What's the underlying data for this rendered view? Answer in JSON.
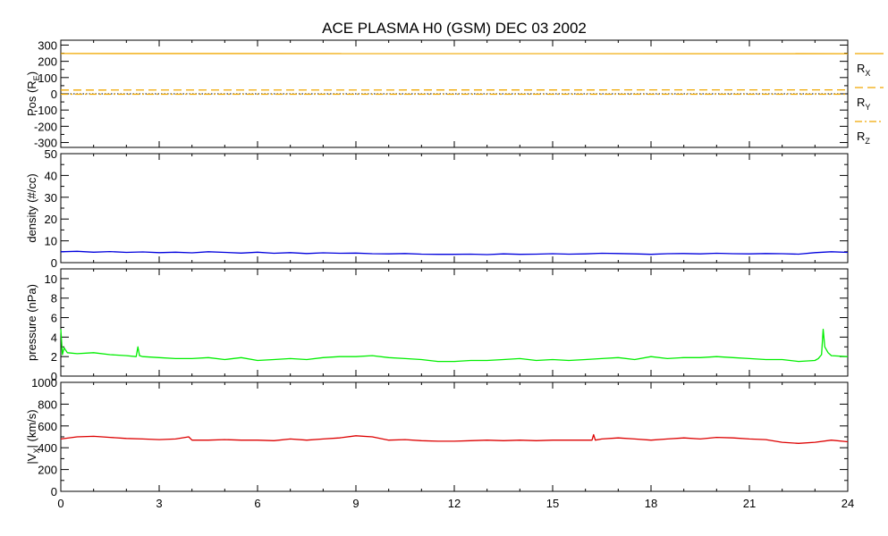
{
  "title": "ACE PLASMA H0 (GSM)   DEC 03 2002",
  "x_axis": {
    "range": [
      0,
      24
    ],
    "ticks": [
      0,
      3,
      6,
      9,
      12,
      15,
      18,
      21,
      24
    ],
    "tick_labels": [
      "0",
      "3",
      "6",
      "9",
      "12",
      "15",
      "18",
      "21",
      "24"
    ]
  },
  "chart_data": [
    {
      "type": "line",
      "panel": "position",
      "ylabel_main": "Pos (R",
      "ylabel_sub": "E",
      "ylabel_end": ")",
      "ylim": [
        -330,
        330
      ],
      "yticks": [
        -300,
        -200,
        -100,
        0,
        100,
        200,
        300
      ],
      "ytick_labels": [
        "-300",
        "-200",
        "-100",
        "0",
        "100",
        "200",
        "300"
      ],
      "legend_placement": "right",
      "series": [
        {
          "name": "X",
          "legend_main": "R",
          "legend_sub": "X",
          "style": "solid",
          "color": "#f0a800",
          "x": [
            0,
            24
          ],
          "y": [
            248,
            247
          ]
        },
        {
          "name": "Y",
          "legend_main": "R",
          "legend_sub": "Y",
          "style": "dashed",
          "color": "#f0a800",
          "x": [
            0,
            24
          ],
          "y": [
            23,
            24
          ]
        },
        {
          "name": "Z",
          "legend_main": "R",
          "legend_sub": "Z",
          "style": "dashdot",
          "color": "#f0a800",
          "x": [
            0,
            24
          ],
          "y": [
            -3,
            -3
          ]
        }
      ],
      "reference_line": {
        "y": 0,
        "style": "dotted",
        "color": "#000000"
      }
    },
    {
      "type": "line",
      "panel": "density",
      "ylabel": "density (#/cc)",
      "ylim": [
        0,
        50
      ],
      "yticks": [
        0,
        10,
        20,
        30,
        40,
        50
      ],
      "ytick_labels": [
        "0",
        "10",
        "20",
        "30",
        "40",
        "50"
      ],
      "series": [
        {
          "color": "#0000dd",
          "x": [
            0,
            0.5,
            1,
            1.5,
            2,
            2.5,
            3,
            3.5,
            4,
            4.5,
            5,
            5.5,
            6,
            6.5,
            7,
            7.5,
            8,
            8.5,
            9,
            9.5,
            10,
            10.5,
            11,
            11.5,
            12,
            12.5,
            13,
            13.5,
            14,
            14.5,
            15,
            15.5,
            16,
            16.5,
            17,
            17.5,
            18,
            18.5,
            19,
            19.5,
            20,
            20.5,
            21,
            21.5,
            22,
            22.5,
            23,
            23.5,
            24
          ],
          "y": [
            5.0,
            5.2,
            4.8,
            5.1,
            4.7,
            4.9,
            4.6,
            4.8,
            4.5,
            5.0,
            4.7,
            4.4,
            4.8,
            4.3,
            4.6,
            4.2,
            4.5,
            4.3,
            4.4,
            4.1,
            4.0,
            4.2,
            3.9,
            3.8,
            3.8,
            3.9,
            3.7,
            4.0,
            3.8,
            3.9,
            4.1,
            3.9,
            4.0,
            4.3,
            4.2,
            4.0,
            3.8,
            4.1,
            4.2,
            4.0,
            4.3,
            4.1,
            4.0,
            4.2,
            4.1,
            3.9,
            4.6,
            5.0,
            4.7
          ]
        }
      ]
    },
    {
      "type": "line",
      "panel": "pressure",
      "ylabel": "pressure (nPa)",
      "ylim": [
        0,
        11
      ],
      "yticks": [
        0,
        2,
        4,
        6,
        8,
        10
      ],
      "ytick_labels": [
        "0",
        "2",
        "4",
        "6",
        "8",
        "10"
      ],
      "series": [
        {
          "color": "#00ee00",
          "x": [
            0,
            0.05,
            0.1,
            0.2,
            0.5,
            1,
            1.5,
            2,
            2.3,
            2.35,
            2.4,
            2.5,
            3,
            3.5,
            4,
            4.5,
            5,
            5.5,
            6,
            6.5,
            7,
            7.5,
            8,
            8.5,
            9,
            9.5,
            10,
            10.5,
            11,
            11.5,
            12,
            12.5,
            13,
            13.5,
            14,
            14.5,
            15,
            15.5,
            16,
            16.5,
            17,
            17.5,
            18,
            18.5,
            19,
            19.5,
            20,
            20.5,
            21,
            21.5,
            22,
            22.5,
            23,
            23.1,
            23.2,
            23.25,
            23.3,
            23.4,
            23.5,
            24
          ],
          "y": [
            4.8,
            2.2,
            2.9,
            2.4,
            2.3,
            2.4,
            2.2,
            2.1,
            2.0,
            3.0,
            2.1,
            2.0,
            1.9,
            1.8,
            1.8,
            1.9,
            1.7,
            1.9,
            1.6,
            1.7,
            1.8,
            1.7,
            1.9,
            2.0,
            2.0,
            2.1,
            1.9,
            1.8,
            1.7,
            1.5,
            1.5,
            1.6,
            1.6,
            1.7,
            1.8,
            1.6,
            1.7,
            1.6,
            1.7,
            1.8,
            1.9,
            1.7,
            2.0,
            1.8,
            1.9,
            1.9,
            2.0,
            1.9,
            1.8,
            1.7,
            1.7,
            1.5,
            1.6,
            1.8,
            2.2,
            4.8,
            3.0,
            2.4,
            2.1,
            2.0
          ]
        }
      ]
    },
    {
      "type": "line",
      "panel": "velocity",
      "ylabel_main": "|V",
      "ylabel_sub": "X",
      "ylabel_end": "| (km/s)",
      "ylim": [
        0,
        1000
      ],
      "yticks": [
        0,
        200,
        400,
        600,
        800,
        1000
      ],
      "ytick_labels": [
        "0",
        "200",
        "400",
        "600",
        "800",
        "1000"
      ],
      "series": [
        {
          "color": "#dd0000",
          "x": [
            0,
            0.5,
            1,
            1.5,
            2,
            2.5,
            3,
            3.5,
            3.9,
            4,
            4.5,
            5,
            5.5,
            6,
            6.5,
            7,
            7.5,
            8,
            8.5,
            9,
            9.5,
            10,
            10.5,
            11,
            11.5,
            12,
            12.5,
            13,
            13.5,
            14,
            14.5,
            15,
            15.5,
            16,
            16.2,
            16.25,
            16.3,
            16.5,
            17,
            17.5,
            18,
            18.5,
            19,
            19.5,
            20,
            20.5,
            21,
            21.5,
            22,
            22.5,
            23,
            23.5,
            24
          ],
          "y": [
            480,
            500,
            505,
            495,
            485,
            480,
            475,
            480,
            500,
            470,
            470,
            475,
            470,
            470,
            465,
            480,
            470,
            480,
            490,
            510,
            500,
            470,
            475,
            465,
            460,
            460,
            465,
            470,
            465,
            470,
            465,
            470,
            470,
            470,
            470,
            520,
            470,
            480,
            490,
            480,
            470,
            480,
            490,
            480,
            495,
            490,
            480,
            475,
            450,
            440,
            450,
            470,
            455
          ]
        }
      ]
    }
  ]
}
